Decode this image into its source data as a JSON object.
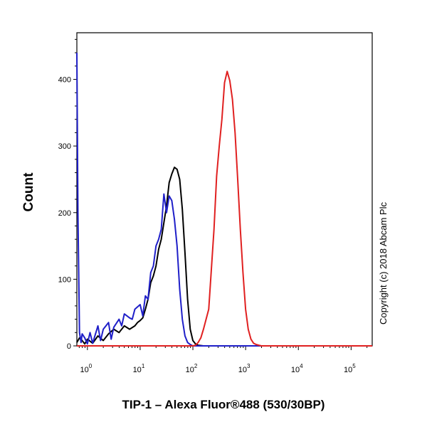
{
  "chart_data": {
    "type": "line",
    "title": "",
    "xlabel": "TIP-1 – Alexa Fluor®488 (530/30BP)",
    "ylabel": "Count",
    "x_scale": "log",
    "xlim_decades": [
      -0.2,
      5.4
    ],
    "ylim": [
      0,
      470
    ],
    "y_ticks": [
      0,
      100,
      200,
      300,
      400
    ],
    "x_tick_labels": [
      {
        "base": "10",
        "exp": "0"
      },
      {
        "base": "10",
        "exp": "1"
      },
      {
        "base": "10",
        "exp": "2"
      },
      {
        "base": "10",
        "exp": "3"
      },
      {
        "base": "10",
        "exp": "4"
      },
      {
        "base": "10",
        "exp": "5"
      }
    ],
    "grid": false,
    "legend": "none",
    "annotation": "Copyright (c) 2018 Abcam Plc",
    "series": [
      {
        "color": "#000000",
        "x_decades": [
          -0.2,
          -0.15,
          -0.1,
          -0.05,
          0,
          0.1,
          0.2,
          0.3,
          0.4,
          0.5,
          0.6,
          0.7,
          0.8,
          0.9,
          0.95,
          1.0,
          1.05,
          1.1,
          1.15,
          1.2,
          1.25,
          1.3,
          1.35,
          1.4,
          1.45,
          1.5,
          1.55,
          1.6,
          1.65,
          1.7,
          1.75,
          1.8,
          1.85,
          1.9,
          1.95,
          2.0,
          2.05,
          2.1,
          2.2,
          2.4,
          2.8,
          3.4,
          4.2,
          5.4
        ],
        "y": [
          5,
          12,
          8,
          3,
          10,
          4,
          15,
          8,
          18,
          25,
          20,
          30,
          25,
          30,
          35,
          38,
          42,
          55,
          70,
          95,
          105,
          120,
          145,
          160,
          185,
          210,
          245,
          258,
          268,
          265,
          250,
          205,
          140,
          70,
          25,
          8,
          3,
          1,
          0,
          0,
          0,
          0,
          0,
          0
        ]
      },
      {
        "color": "#1f1fc8",
        "x_decades": [
          -0.2,
          -0.18,
          -0.15,
          -0.12,
          -0.1,
          -0.05,
          0.0,
          0.05,
          0.1,
          0.2,
          0.25,
          0.3,
          0.4,
          0.45,
          0.5,
          0.6,
          0.65,
          0.7,
          0.8,
          0.85,
          0.9,
          1.0,
          1.05,
          1.1,
          1.15,
          1.2,
          1.25,
          1.3,
          1.35,
          1.4,
          1.45,
          1.5,
          1.55,
          1.6,
          1.65,
          1.7,
          1.75,
          1.8,
          1.85,
          1.9,
          1.95,
          2.0,
          2.1,
          2.3,
          5.4
        ],
        "y": [
          440,
          200,
          20,
          5,
          18,
          12,
          3,
          20,
          4,
          30,
          8,
          25,
          35,
          10,
          28,
          40,
          30,
          48,
          42,
          40,
          55,
          62,
          45,
          75,
          70,
          110,
          120,
          150,
          160,
          175,
          228,
          200,
          225,
          218,
          190,
          150,
          85,
          40,
          15,
          5,
          2,
          0,
          0,
          0,
          0
        ]
      },
      {
        "color": "#e02020",
        "x_decades": [
          -0.2,
          1.8,
          1.9,
          2.0,
          2.05,
          2.1,
          2.15,
          2.2,
          2.3,
          2.4,
          2.45,
          2.5,
          2.55,
          2.6,
          2.65,
          2.7,
          2.75,
          2.8,
          2.85,
          2.9,
          2.95,
          3.0,
          3.05,
          3.1,
          3.15,
          3.2,
          3.25,
          3.3,
          3.4,
          3.5,
          4.0,
          5.4
        ],
        "y": [
          0,
          0,
          0,
          0,
          1,
          5,
          12,
          25,
          55,
          175,
          255,
          300,
          340,
          395,
          412,
          398,
          370,
          320,
          250,
          175,
          110,
          55,
          25,
          10,
          4,
          2,
          1,
          0,
          0,
          0,
          0,
          0
        ]
      }
    ]
  }
}
